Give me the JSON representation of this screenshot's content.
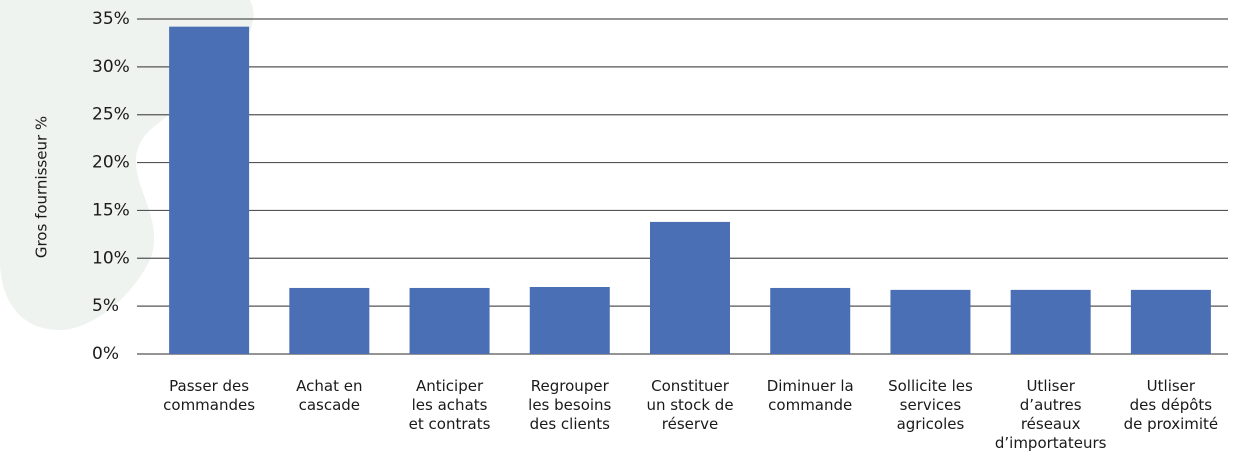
{
  "chart_data": {
    "type": "bar",
    "y_label": "Gros fournisseur %",
    "categories": [
      "Passer des\ncommandes",
      "Achat en\ncascade",
      "Anticiper\nles achats\net contrats",
      "Regrouper\nles besoins\ndes clients",
      "Constituer\nun stock de\nréserve",
      "Diminuer la\ncommande",
      "Sollicite les\nservices\nagricoles",
      "Utliser\nd’autres\nréseaux\nd’importateurs",
      "Utliser\ndes dépôts\nde proximité"
    ],
    "values": [
      34.2,
      6.9,
      6.9,
      7.0,
      13.8,
      6.9,
      6.7,
      6.7,
      6.7
    ],
    "color": "#4a6fb5",
    "ylim": [
      0,
      35
    ],
    "yticks": [
      {
        "value": 0,
        "label": "0%"
      },
      {
        "value": 5,
        "label": "5%"
      },
      {
        "value": 10,
        "label": "10%"
      },
      {
        "value": 15,
        "label": "15%"
      },
      {
        "value": 20,
        "label": "20%"
      },
      {
        "value": 25,
        "label": "25%"
      },
      {
        "value": 30,
        "label": "30%"
      },
      {
        "value": 35,
        "label": "35%"
      }
    ],
    "grid": true
  }
}
